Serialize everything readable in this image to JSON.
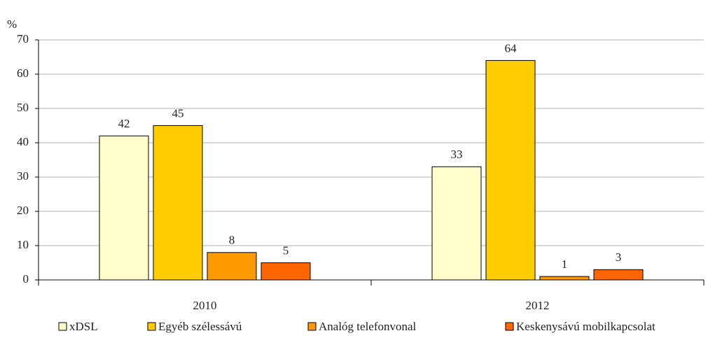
{
  "chart_data": {
    "type": "bar",
    "y_label": "%",
    "categories": [
      "2010",
      "2012"
    ],
    "series": [
      {
        "name": "xDSL",
        "color": "#ffffcc",
        "values": [
          42,
          33
        ]
      },
      {
        "name": "Egyéb szélessávú",
        "color": "#ffcc00",
        "values": [
          45,
          64
        ]
      },
      {
        "name": "Analóg telefonvonal",
        "color": "#ff9900",
        "values": [
          8,
          1
        ]
      },
      {
        "name": "Keskenysávú mobilkapcsolat",
        "color": "#ff6600",
        "values": [
          5,
          3
        ]
      }
    ],
    "ylim": [
      0,
      70
    ],
    "yticks": [
      0,
      10,
      20,
      30,
      40,
      50,
      60,
      70
    ],
    "grid": true,
    "legend": "bottom"
  }
}
